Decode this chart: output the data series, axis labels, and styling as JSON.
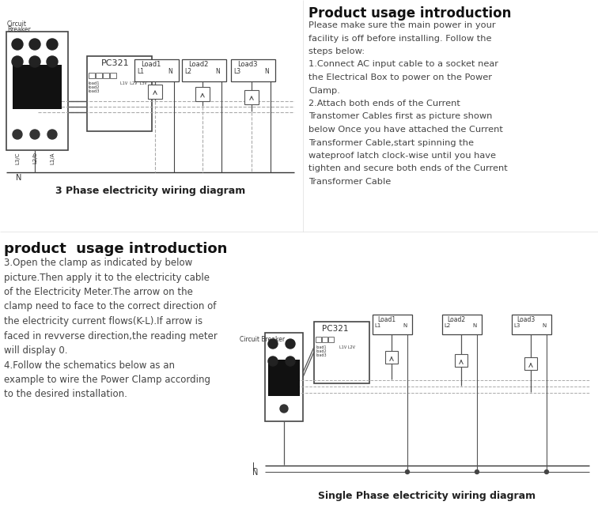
{
  "bg_color": "#ffffff",
  "title_right": "Product usage introduction",
  "title_left_bottom": "product  usage introduction",
  "right_text_lines": [
    "Please make sure the main power in your",
    "facility is off before installing. Follow the",
    "steps below:",
    "1.Connect AC input cable to a socket near",
    "the Electrical Box to power on the Power",
    "Clamp.",
    "2.Attach both ends of the Current",
    "Transtomer Cables first as picture shown",
    "below Once you have attached the Current",
    "Transformer Cable,start spinning the",
    "wateproof latch clock-wise until you have",
    "tighten and secure both ends of the Current",
    "Transformer Cable"
  ],
  "bottom_left_text_lines": [
    "3.Open the clamp as indicated by below",
    "picture.Then apply it to the electricity cable",
    "of the Electricity Meter.The arrow on the",
    "clamp need to face to the correct direction of",
    "the electricity current flows(K-L).If arrow is",
    "faced in revverse direction,the reading meter",
    "will display 0.",
    "4.Follow the schematics below as an",
    "example to wire the Power Clamp according",
    "to the desired installation."
  ],
  "diagram1_caption": "3 Phase electricity wiring diagram",
  "diagram2_caption": "Single Phase electricity wiring diagram",
  "line_color": "#555555",
  "text_color": "#333333",
  "dashed_color": "#aaaaaa",
  "load_labels": [
    "Load1",
    "Load2",
    "Load3"
  ],
  "phase_labels": [
    "L1",
    "L2",
    "L3"
  ]
}
